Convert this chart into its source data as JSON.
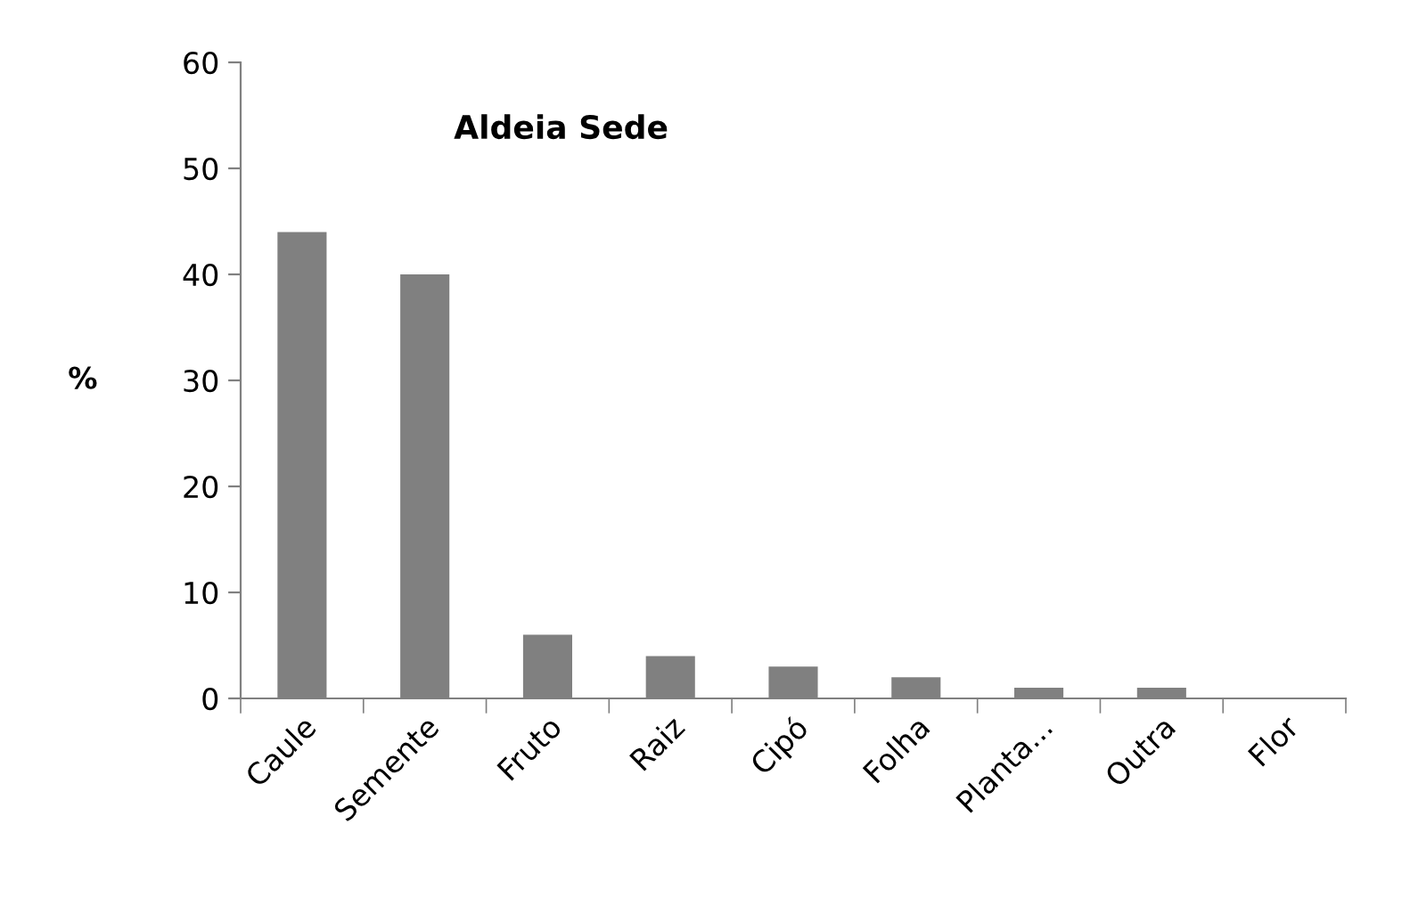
{
  "chart_data": {
    "type": "bar",
    "title": "Aldeia Sede",
    "ylabel": "%",
    "categories": [
      "Caule",
      "Semente",
      "Fruto",
      "Raiz",
      "Cipó",
      "Folha",
      "Planta...",
      "Outra",
      "Flor"
    ],
    "values": [
      44,
      40,
      6,
      4,
      3,
      2,
      1,
      1,
      0
    ],
    "color": "#808080",
    "ylim": [
      0,
      60
    ],
    "yticks": [
      0,
      10,
      20,
      30,
      40,
      50,
      60
    ],
    "grid": false,
    "legend": false
  }
}
